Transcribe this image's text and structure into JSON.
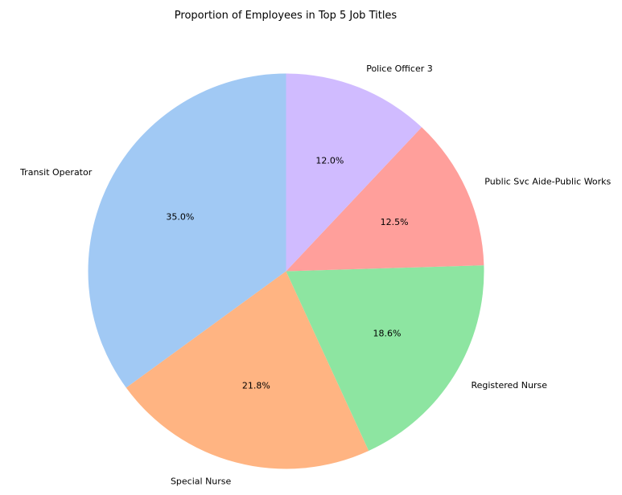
{
  "chart_data": {
    "type": "pie",
    "title": "Proportion of Employees in Top 5 Job Titles",
    "labels": [
      "Transit Operator",
      "Special Nurse",
      "Registered Nurse",
      "Public Svc Aide-Public Works",
      "Police Officer 3"
    ],
    "values": [
      35.0,
      21.8,
      18.6,
      12.5,
      12.0
    ],
    "percent_labels": [
      "35.0%",
      "21.8%",
      "18.6%",
      "12.5%",
      "12.0%"
    ],
    "colors": [
      "#a1c9f4",
      "#ffb482",
      "#8de5a1",
      "#ff9f9b",
      "#d0bbff"
    ],
    "start_angle_deg": 90,
    "direction": "counterclockwise",
    "legend": "none"
  }
}
